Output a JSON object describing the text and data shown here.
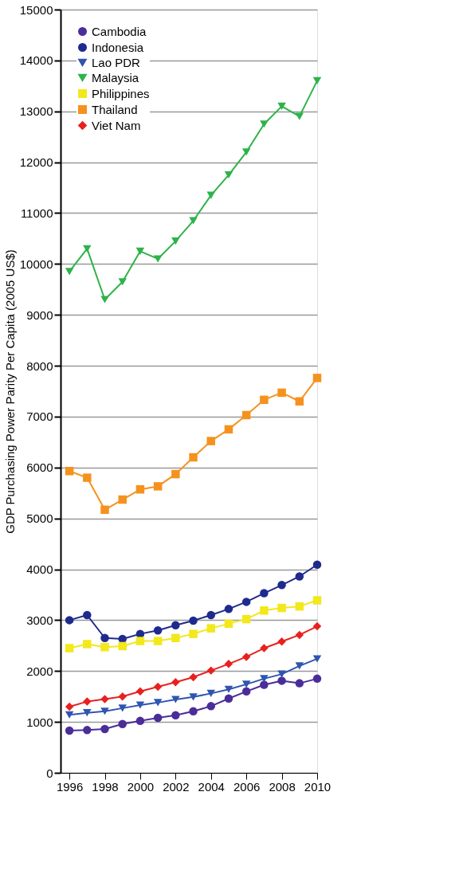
{
  "chart_data": {
    "type": "line",
    "ylabel": "GDP Purchasing Power Parity Per Capita (2005 US$)",
    "x": [
      1996,
      1997,
      1998,
      1999,
      2000,
      2001,
      2002,
      2003,
      2004,
      2005,
      2006,
      2007,
      2008,
      2009,
      2010
    ],
    "xlim": [
      1995.5,
      2010
    ],
    "xticks": [
      1996,
      1998,
      2000,
      2002,
      2004,
      2006,
      2008,
      2010
    ],
    "ylim": [
      0,
      15000
    ],
    "yticks": [
      0,
      1000,
      2000,
      3000,
      4000,
      5000,
      6000,
      7000,
      8000,
      9000,
      10000,
      11000,
      12000,
      13000,
      14000,
      15000
    ],
    "grid": "y",
    "legend": "top left",
    "series": [
      {
        "name": "Cambodia",
        "color": "#4b2d9a",
        "marker": "circle",
        "values": [
          830,
          840,
          860,
          960,
          1020,
          1080,
          1130,
          1210,
          1310,
          1460,
          1600,
          1730,
          1810,
          1760,
          1850
        ]
      },
      {
        "name": "Indonesia",
        "color": "#1f2a8f",
        "marker": "circle",
        "values": [
          3000,
          3100,
          2650,
          2630,
          2730,
          2800,
          2900,
          2990,
          3100,
          3220,
          3360,
          3530,
          3690,
          3860,
          4090
        ]
      },
      {
        "name": "Lao PDR",
        "color": "#2f55b0",
        "marker": "triangle",
        "values": [
          1140,
          1180,
          1210,
          1270,
          1330,
          1380,
          1440,
          1490,
          1560,
          1640,
          1740,
          1850,
          1940,
          2100,
          2240
        ]
      },
      {
        "name": "Malaysia",
        "color": "#2db34a",
        "marker": "triangle",
        "values": [
          9850,
          10300,
          9300,
          9650,
          10250,
          10100,
          10450,
          10850,
          11350,
          11750,
          12200,
          12750,
          13100,
          12900,
          13600
        ]
      },
      {
        "name": "Philippines",
        "color": "#f2e81c",
        "marker": "square",
        "values": [
          2450,
          2530,
          2470,
          2490,
          2590,
          2590,
          2650,
          2730,
          2840,
          2930,
          3020,
          3190,
          3240,
          3270,
          3390
        ]
      },
      {
        "name": "Thailand",
        "color": "#f5921e",
        "marker": "square",
        "values": [
          5930,
          5800,
          5170,
          5370,
          5570,
          5630,
          5870,
          6200,
          6520,
          6750,
          7030,
          7330,
          7470,
          7300,
          7760
        ]
      },
      {
        "name": "Viet Nam",
        "color": "#e8211f",
        "marker": "diamond",
        "values": [
          1300,
          1400,
          1450,
          1500,
          1600,
          1690,
          1780,
          1880,
          2010,
          2140,
          2280,
          2450,
          2580,
          2710,
          2880
        ]
      }
    ]
  }
}
